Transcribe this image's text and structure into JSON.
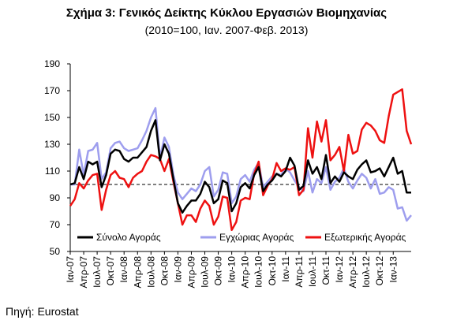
{
  "chart_data": {
    "type": "line",
    "title": "Σχήμα 3: Γενικός Δείκτης Κύκλου Εργασιών Βιομηχανίας",
    "subtitle": "(2010=100, Ιαν. 2007-Φεβ. 2013)",
    "source": "Πηγή: Eurostat",
    "ylim": [
      50,
      190
    ],
    "yticks": [
      50,
      70,
      90,
      110,
      130,
      150,
      170,
      190
    ],
    "reference_line": 100,
    "x_tick_labels": [
      "Ιαν-07",
      "Απρ-07",
      "Ιουλ-07",
      "Οκτ-07",
      "Ιαν-08",
      "Απρ-08",
      "Ιουλ-08",
      "Οκτ-08",
      "Ιαν-09",
      "Απρ-09",
      "Ιουλ-09",
      "Οκτ-09",
      "Ιαν-10",
      "Απρ-10",
      "Ιουλ-10",
      "Οκτ-10",
      "Ιαν-11",
      "Απρ-11",
      "Ιουλ-11",
      "Οκτ-11",
      "Ιαν-12",
      "Απρ-12",
      "Ιουλ-12",
      "Οκτ-12",
      "Ιαν-13"
    ],
    "legend_position": "bottom",
    "series": [
      {
        "name": "Σύνολο Αγοράς",
        "color": "#000000",
        "values": [
          100,
          101,
          113,
          104,
          117,
          115,
          117,
          98,
          107,
          123,
          126,
          125,
          119,
          117,
          120,
          120,
          124,
          128,
          140,
          148,
          118,
          130,
          123,
          104,
          86,
          79,
          84,
          88,
          88,
          93,
          102,
          98,
          86,
          89,
          103,
          101,
          80,
          86,
          98,
          101,
          97,
          107,
          113,
          95,
          100,
          103,
          108,
          106,
          110,
          120,
          114,
          96,
          99,
          118,
          108,
          113,
          104,
          122,
          101,
          106,
          102,
          109,
          106,
          104,
          111,
          115,
          118,
          109,
          110,
          112,
          106,
          113,
          120,
          108,
          110,
          94,
          94
        ]
      },
      {
        "name": "Εγχώριας Αγοράς",
        "color": "#9e9eee",
        "values": [
          100,
          100,
          126,
          107,
          125,
          126,
          131,
          104,
          109,
          127,
          131,
          132,
          127,
          125,
          126,
          127,
          133,
          140,
          150,
          157,
          120,
          135,
          128,
          107,
          94,
          89,
          93,
          97,
          95,
          100,
          110,
          113,
          91,
          96,
          109,
          108,
          86,
          91,
          104,
          107,
          102,
          111,
          116,
          98,
          102,
          106,
          108,
          107,
          112,
          109,
          103,
          98,
          95,
          110,
          94,
          104,
          101,
          113,
          96,
          102,
          105,
          112,
          102,
          97,
          103,
          108,
          105,
          97,
          104,
          93,
          94,
          98,
          96,
          82,
          83,
          73,
          77
        ]
      },
      {
        "name": "Εξωτερικής Αγοράς",
        "color": "#ee1111",
        "values": [
          84,
          89,
          101,
          97,
          103,
          107,
          108,
          81,
          96,
          107,
          110,
          105,
          104,
          98,
          105,
          108,
          110,
          117,
          122,
          121,
          119,
          110,
          119,
          102,
          86,
          70,
          77,
          77,
          72,
          82,
          88,
          84,
          70,
          76,
          91,
          90,
          66,
          72,
          88,
          90,
          89,
          108,
          117,
          92,
          99,
          104,
          116,
          110,
          112,
          111,
          113,
          92,
          96,
          142,
          120,
          147,
          132,
          148,
          118,
          122,
          128,
          110,
          137,
          123,
          125,
          141,
          146,
          144,
          140,
          133,
          131,
          151,
          167,
          169,
          171,
          140,
          130
        ]
      }
    ]
  }
}
